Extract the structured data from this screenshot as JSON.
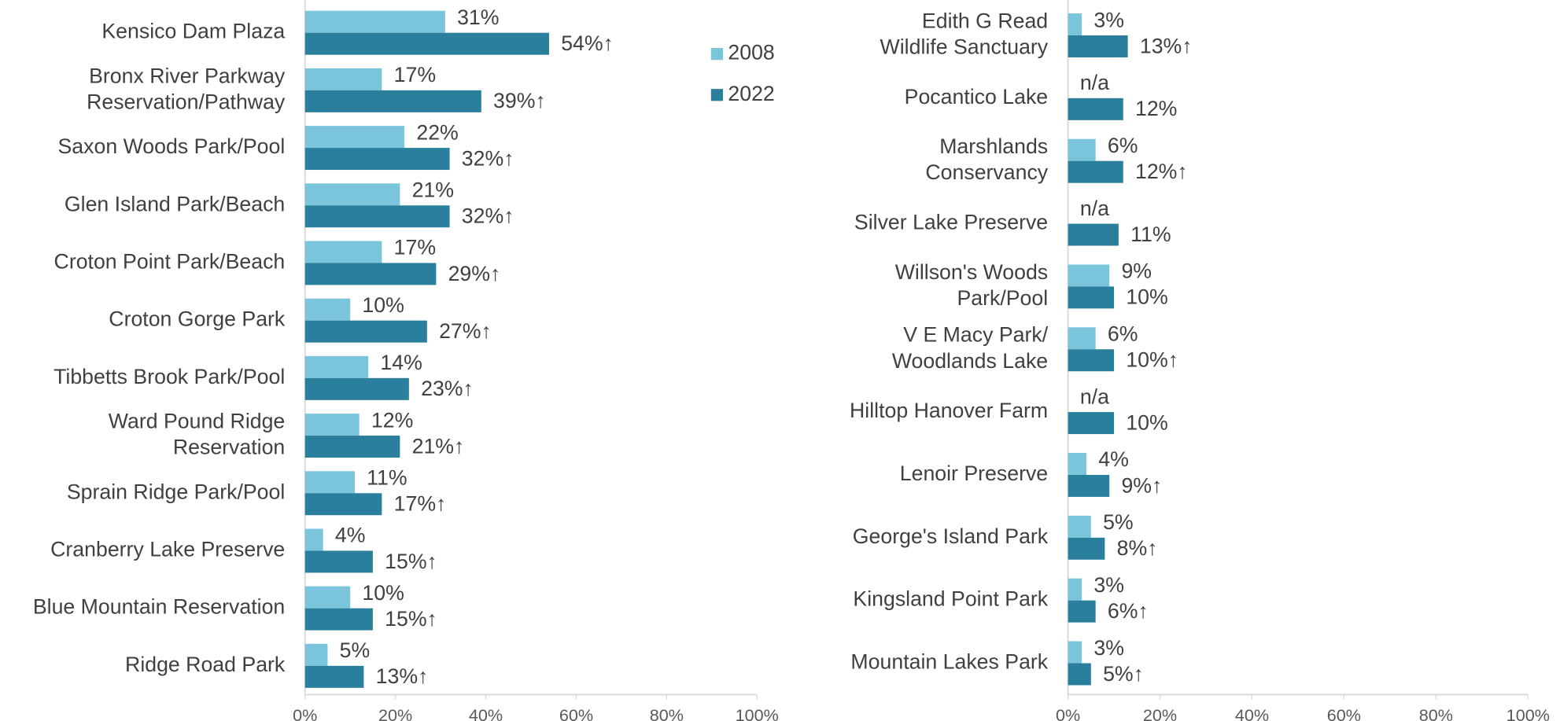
{
  "chart_data": [
    {
      "type": "bar",
      "orientation": "horizontal",
      "legend": "top-right",
      "categories": [
        "Kensico Dam Plaza",
        "Bronx River Parkway\nReservation/Pathway",
        "Saxon Woods Park/Pool",
        "Glen Island Park/Beach",
        "Croton Point Park/Beach",
        "Croton Gorge Park",
        "Tibbetts Brook Park/Pool",
        "Ward Pound Ridge\nReservation",
        "Sprain Ridge Park/Pool",
        "Cranberry Lake Preserve",
        "Blue Mountain Reservation",
        "Ridge Road Park"
      ],
      "series": [
        {
          "name": "2008",
          "color": "#7ac4dc",
          "values": [
            31,
            17,
            22,
            21,
            17,
            10,
            14,
            12,
            11,
            4,
            10,
            5
          ],
          "value_labels": [
            "31%",
            "17%",
            "22%",
            "21%",
            "17%",
            "10%",
            "14%",
            "12%",
            "11%",
            "4%",
            "10%",
            "5%"
          ]
        },
        {
          "name": "2022",
          "color": "#2a7f9c",
          "values": [
            54,
            39,
            32,
            32,
            29,
            27,
            23,
            21,
            17,
            15,
            15,
            13
          ],
          "value_labels": [
            "54%↑",
            "39%↑",
            "32%↑",
            "32%↑",
            "29%↑",
            "27%↑",
            "23%↑",
            "21%↑",
            "17%↑",
            "15%↑",
            "15%↑",
            "13%↑"
          ]
        }
      ],
      "xlim": [
        0,
        100
      ],
      "xticks": [
        {
          "value": 0,
          "label": "0%"
        },
        {
          "value": 20,
          "label": "20%"
        },
        {
          "value": 40,
          "label": "40%"
        },
        {
          "value": 60,
          "label": "60%"
        },
        {
          "value": 80,
          "label": "80%"
        },
        {
          "value": 100,
          "label": "100%"
        }
      ]
    },
    {
      "type": "bar",
      "orientation": "horizontal",
      "categories": [
        "Edith G Read\nWildlife Sanctuary",
        "Pocantico Lake",
        "Marshlands\nConservancy",
        "Silver Lake Preserve",
        "Willson's Woods\nPark/Pool",
        "V E Macy Park/\nWoodlands Lake",
        "Hilltop Hanover Farm",
        "Lenoir Preserve",
        "George's Island Park",
        "Kingsland Point Park",
        "Mountain Lakes Park"
      ],
      "series": [
        {
          "name": "2008",
          "color": "#7ac4dc",
          "values": [
            3,
            null,
            6,
            null,
            9,
            6,
            null,
            4,
            5,
            3,
            3
          ],
          "value_labels": [
            "3%",
            "n/a",
            "6%",
            "n/a",
            "9%",
            "6%",
            "n/a",
            "4%",
            "5%",
            "3%",
            "3%"
          ]
        },
        {
          "name": "2022",
          "color": "#2a7f9c",
          "values": [
            13,
            12,
            12,
            11,
            10,
            10,
            10,
            9,
            8,
            6,
            5
          ],
          "value_labels": [
            "13%↑",
            "12%",
            "12%↑",
            "11%",
            "10%",
            "10%↑",
            "10%",
            "9%↑",
            "8%↑",
            "6%↑",
            "5%↑"
          ]
        }
      ],
      "xlim": [
        0,
        100
      ],
      "xticks": [
        {
          "value": 0,
          "label": "0%"
        },
        {
          "value": 20,
          "label": "20%"
        },
        {
          "value": 40,
          "label": "40%"
        },
        {
          "value": 60,
          "label": "60%"
        },
        {
          "value": 80,
          "label": "80%"
        },
        {
          "value": 100,
          "label": "100%"
        }
      ]
    }
  ]
}
